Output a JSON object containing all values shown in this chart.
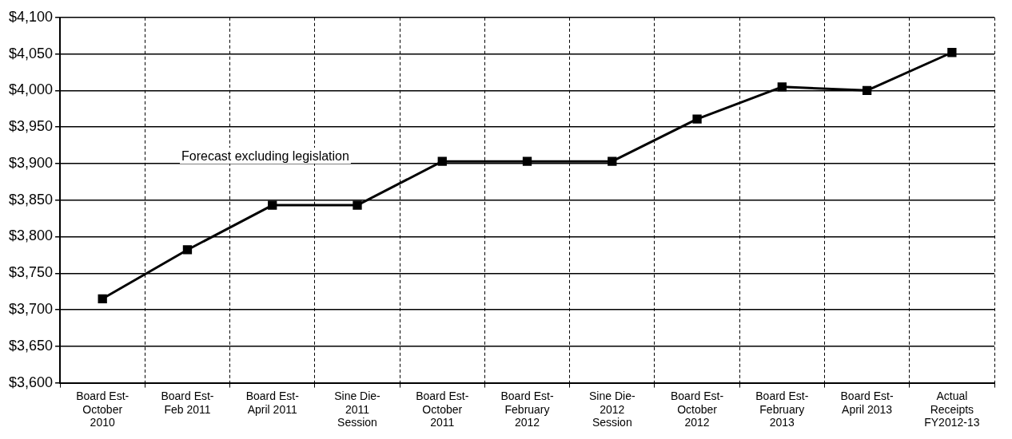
{
  "chart_data": {
    "type": "line",
    "categories": [
      "Board Est-\nOctober\n2010",
      "Board Est-\nFeb 2011",
      "Board Est-\nApril 2011",
      "Sine Die-\n2011\nSession",
      "Board Est-\nOctober\n2011",
      "Board Est-\nFebruary\n2012",
      "Sine Die-\n2012\nSession",
      "Board Est-\nOctober\n2012",
      "Board Est-\nFebruary\n2013",
      "Board Est-\nApril 2013",
      "Actual\nReceipts\nFY2012-13"
    ],
    "series": [
      {
        "color": "#000000",
        "values": [
          3715,
          3782,
          3843,
          3843,
          3903,
          3903,
          3903,
          3961,
          4005,
          4000,
          4052
        ]
      }
    ],
    "ylim": [
      3600,
      4100
    ],
    "yticks": [
      {
        "value": 3600,
        "label": "$3,600"
      },
      {
        "value": 3650,
        "label": "$3,650"
      },
      {
        "value": 3700,
        "label": "$3,700"
      },
      {
        "value": 3750,
        "label": "$3,750"
      },
      {
        "value": 3800,
        "label": "$3,800"
      },
      {
        "value": 3850,
        "label": "$3,850"
      },
      {
        "value": 3900,
        "label": "$3,900"
      },
      {
        "value": 3950,
        "label": "$3,950"
      },
      {
        "value": 4000,
        "label": "$4,000"
      },
      {
        "value": 4050,
        "label": "$4,050"
      },
      {
        "value": 4100,
        "label": "$4,100"
      }
    ],
    "annotations": [
      "Forecast excluding legislation"
    ],
    "grid": true,
    "legend": false,
    "marker": "square",
    "line_style": "solid"
  }
}
